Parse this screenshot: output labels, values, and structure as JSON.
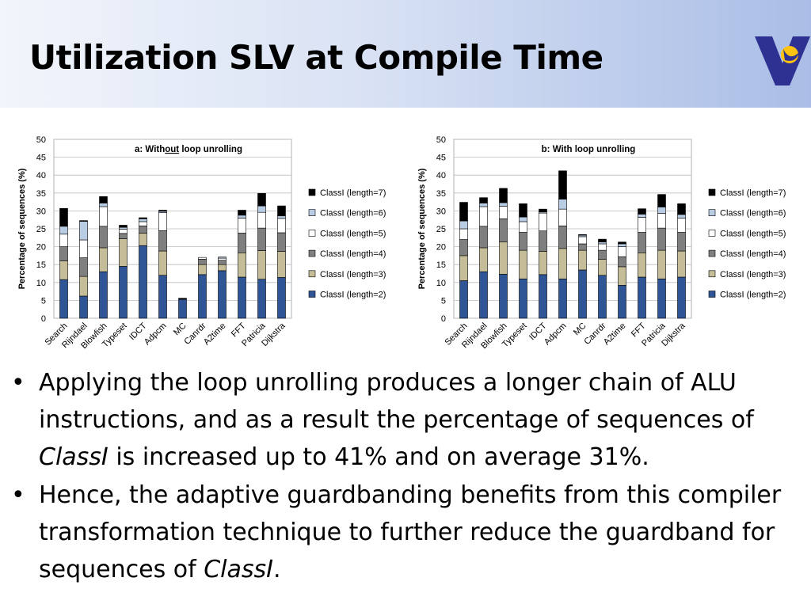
{
  "slide": {
    "title": "Utilization SLV at Compile Time",
    "logo": "v-logo-icon"
  },
  "chart_data": [
    {
      "type": "bar",
      "stacked": true,
      "title": "a: Without loop unrolling",
      "title_parts": [
        "a: With",
        "out",
        " loop unrolling"
      ],
      "ylabel": "Percentage of sequences  (%)",
      "ylim": [
        0,
        50
      ],
      "yticks": [
        0,
        5,
        10,
        15,
        20,
        25,
        30,
        35,
        40,
        45,
        50
      ],
      "grid": true,
      "legend_position": "right",
      "categories": [
        "Search",
        "Rijndael",
        "Blowfish",
        "Typeset",
        "IDCT",
        "Adpcm",
        "MC",
        "Canrdr",
        "A2time",
        "FFT",
        "Patricia",
        "Dijkstra"
      ],
      "series": [
        {
          "name": "ClassI (length=2)",
          "color": "#2f5597",
          "values": [
            10.8,
            6.2,
            13.0,
            14.5,
            20.3,
            12.0,
            5.3,
            12.2,
            13.3,
            11.5,
            10.9,
            11.4
          ]
        },
        {
          "name": "ClassI (length=3)",
          "color": "#c4bd97",
          "values": [
            5.2,
            5.5,
            6.7,
            7.7,
            3.5,
            6.8,
            0,
            2.8,
            1.7,
            6.8,
            8.0,
            7.3
          ]
        },
        {
          "name": "ClassI (length=4)",
          "color": "#7f7f7f",
          "values": [
            4.0,
            5.2,
            6.0,
            1.5,
            2.0,
            5.7,
            0,
            1.5,
            1.2,
            5.5,
            6.3,
            5.2
          ]
        },
        {
          "name": "ClassI (length=5)",
          "color": "#ffffff",
          "values": [
            3.5,
            5.0,
            5.5,
            1.2,
            1.2,
            5.0,
            0,
            0.5,
            0.6,
            4.2,
            4.4,
            4.0
          ]
        },
        {
          "name": "ClassI (length=6)",
          "color": "#b8cce4",
          "values": [
            2.2,
            5.2,
            1.0,
            0.5,
            0.8,
            0.4,
            0,
            0,
            0.3,
            0.8,
            1.8,
            0.7
          ]
        },
        {
          "name": "ClassI (length=7)",
          "color": "#000000",
          "values": [
            5.0,
            0.2,
            1.8,
            0.6,
            0.3,
            0.3,
            0.3,
            0,
            0,
            1.4,
            3.5,
            2.8
          ]
        }
      ]
    },
    {
      "type": "bar",
      "stacked": true,
      "title": "b: With loop unrolling",
      "title_parts": [
        "b: With loop unrolling",
        "",
        ""
      ],
      "ylabel": "Percentage of sequences  (%)",
      "ylim": [
        0,
        50
      ],
      "yticks": [
        0,
        5,
        10,
        15,
        20,
        25,
        30,
        35,
        40,
        45,
        50
      ],
      "grid": true,
      "legend_position": "right",
      "categories": [
        "Search",
        "Rijndael",
        "Blowfish",
        "Typeset",
        "IDCT",
        "Adpcm",
        "MC",
        "Canrdr",
        "A2time",
        "FFT",
        "Patricia",
        "Dijkstra"
      ],
      "series": [
        {
          "name": "ClassI (length=2)",
          "color": "#2f5597",
          "values": [
            10.5,
            13.0,
            12.3,
            11.0,
            12.2,
            11.0,
            13.5,
            12.0,
            9.2,
            11.5,
            11.0,
            11.5
          ]
        },
        {
          "name": "ClassI (length=3)",
          "color": "#c4bd97",
          "values": [
            7.0,
            6.7,
            9.0,
            8.0,
            6.5,
            8.5,
            5.5,
            4.5,
            5.2,
            6.8,
            8.0,
            7.3
          ]
        },
        {
          "name": "ClassI (length=4)",
          "color": "#7f7f7f",
          "values": [
            4.5,
            6.0,
            6.5,
            5.0,
            5.7,
            6.3,
            1.8,
            2.5,
            2.8,
            5.7,
            6.2,
            5.2
          ]
        },
        {
          "name": "ClassI (length=5)",
          "color": "#ffffff",
          "values": [
            3.0,
            5.5,
            3.5,
            3.0,
            5.0,
            4.7,
            2.0,
            1.8,
            2.8,
            4.2,
            4.1,
            4.0
          ]
        },
        {
          "name": "ClassI (length=6)",
          "color": "#b8cce4",
          "values": [
            2.2,
            1.0,
            1.0,
            1.3,
            0.3,
            2.8,
            0.4,
            0.5,
            0.8,
            0.9,
            1.8,
            1.0
          ]
        },
        {
          "name": "ClassI (length=7)",
          "color": "#000000",
          "values": [
            5.2,
            1.5,
            4.0,
            3.7,
            0.8,
            7.9,
            0.2,
            0.8,
            0.5,
            1.5,
            3.5,
            3.0
          ]
        }
      ]
    }
  ],
  "bullets": [
    {
      "parts": [
        {
          "text": "Applying the loop unrolling produces a longer chain of ALU instructions, and as a result the percentage of sequences of ",
          "italic": false
        },
        {
          "text": "ClassI",
          "italic": true
        },
        {
          "text": " is increased up to 41% and on average 31%.",
          "italic": false
        }
      ]
    },
    {
      "parts": [
        {
          "text": "Hence, the adaptive guardbanding benefits from this compiler transformation technique to further reduce the guardband for sequences of ",
          "italic": false
        },
        {
          "text": "ClassI",
          "italic": true
        },
        {
          "text": ".",
          "italic": false
        }
      ]
    }
  ],
  "bullet_symbol": "•"
}
